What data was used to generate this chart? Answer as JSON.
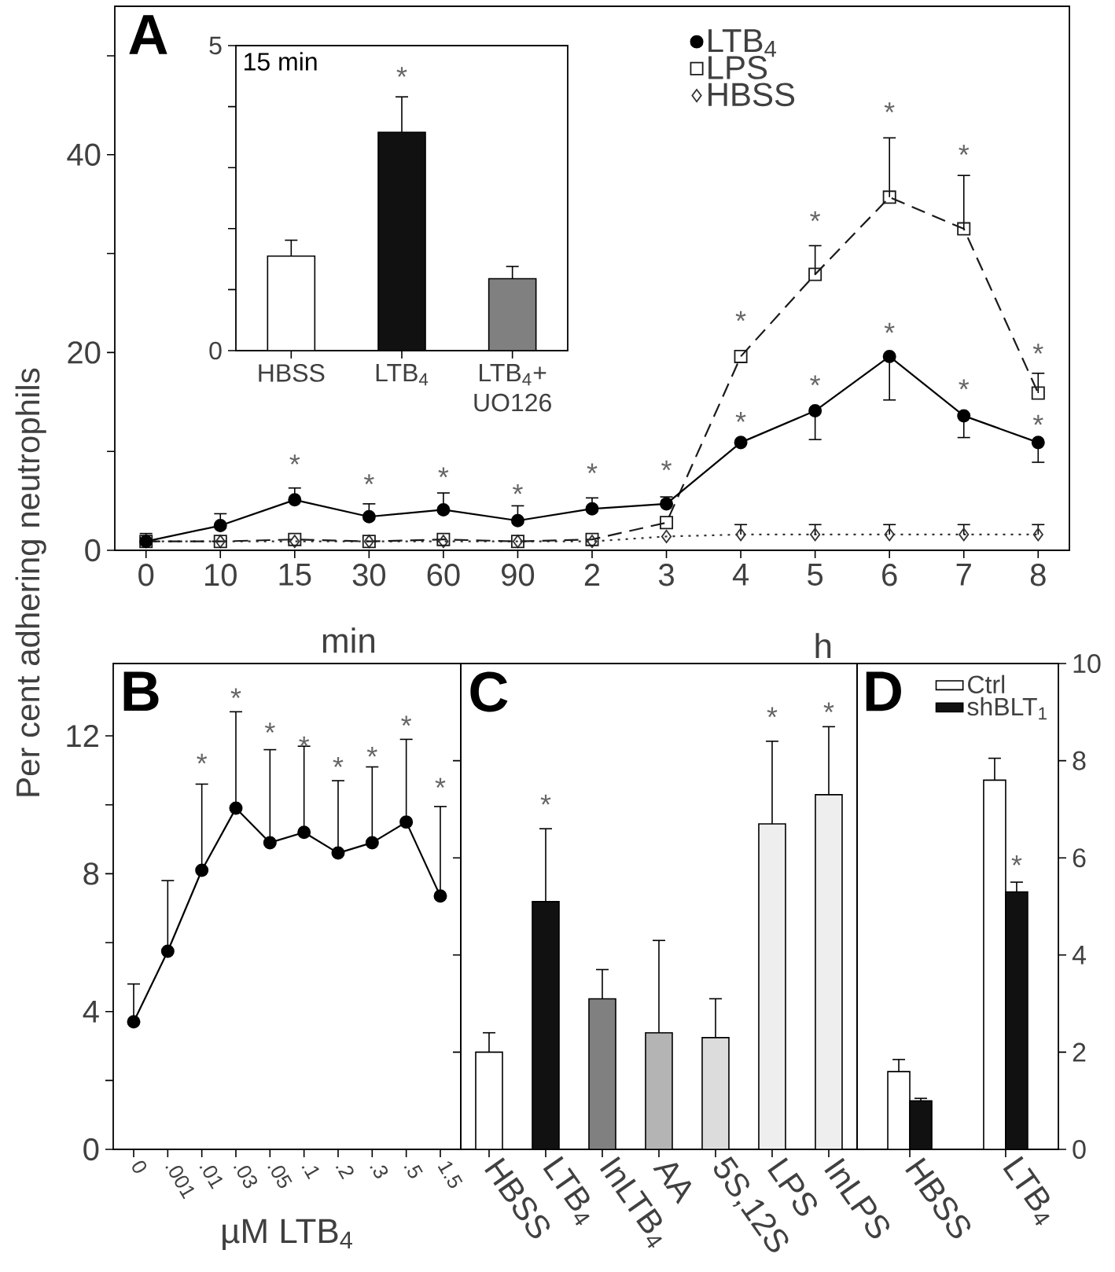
{
  "chart_data": [
    {
      "type": "line",
      "title": "A",
      "ylabel": "Per cent adhering neutrophils",
      "categories": [
        "0",
        "10",
        "15",
        "30",
        "60",
        "90",
        "2",
        "3",
        "4",
        "5",
        "6",
        "7",
        "8"
      ],
      "ylim": [
        0,
        55
      ],
      "yticks": [
        0,
        {
          "value": 10,
          "label": null
        },
        20,
        {
          "value": 30,
          "label": null
        },
        40,
        {
          "value": 50,
          "label": null
        }
      ],
      "legend": "top",
      "series": [
        {
          "name": "LTB$_{4}$",
          "color": "#000000",
          "marker": "circle",
          "line_style": "solid",
          "values": [
            0.9,
            2.5,
            5.1,
            3.4,
            4.1,
            3.0,
            4.2,
            4.7,
            10.9,
            14.1,
            19.6,
            13.6,
            10.9
          ],
          "errors": [
            [
              0.9,
              1.7
            ],
            [
              2.5,
              3.7
            ],
            [
              5.1,
              6.3
            ],
            [
              3.4,
              4.7
            ],
            [
              4.1,
              5.8
            ],
            [
              3.0,
              4.5
            ],
            [
              4.2,
              5.3
            ],
            [
              4.7,
              5.4
            ],
            null,
            [
              11.2,
              14.1
            ],
            [
              15.2,
              19.6
            ],
            [
              11.4,
              13.6
            ],
            [
              8.9,
              10.9
            ]
          ]
        },
        {
          "name": "LPS",
          "color": "#1a1a1a",
          "marker": "square",
          "line_style": "dashed",
          "values": [
            0.9,
            0.9,
            1.1,
            0.9,
            1.1,
            0.9,
            1.1,
            2.8,
            19.6,
            27.9,
            35.7,
            32.5,
            15.9
          ],
          "errors": [
            null,
            null,
            null,
            null,
            null,
            null,
            null,
            null,
            null,
            [
              27.9,
              30.8
            ],
            [
              35.7,
              41.7
            ],
            [
              32.5,
              37.9
            ],
            [
              15.9,
              17.9
            ]
          ]
        },
        {
          "name": "HBSS",
          "color": "#333333",
          "marker": "diamond",
          "line_style": "dotted",
          "values": [
            0.9,
            0.9,
            0.9,
            0.9,
            0.9,
            0.9,
            0.9,
            1.4,
            1.6,
            1.6,
            1.6,
            1.6,
            1.6
          ],
          "errors": [
            null,
            null,
            null,
            null,
            null,
            null,
            null,
            null,
            [
              1.6,
              2.6
            ],
            [
              1.6,
              2.6
            ],
            [
              1.6,
              2.6
            ],
            [
              1.6,
              2.6
            ],
            [
              1.6,
              2.6
            ]
          ]
        }
      ],
      "annotations": [
        "min",
        "h",
        "*",
        "*",
        "*",
        "*",
        "*",
        "*",
        "*",
        "*",
        "*",
        "*",
        "*",
        "*",
        "*",
        "*",
        "*",
        "*"
      ]
    },
    {
      "type": "bar",
      "title": "15 min",
      "categories": [
        "HBSS",
        "LTB$_{4}$",
        "LTB$_{4}$+ UO126"
      ],
      "values": [
        1.55,
        3.58,
        1.18
      ],
      "errors": [
        0.26,
        0.58,
        0.2
      ],
      "colors": [
        "#ffffff",
        "#111111",
        "#808080"
      ],
      "ylim": [
        0,
        5
      ],
      "yticks": [
        0,
        {
          "value": 1,
          "label": null
        },
        {
          "value": 2,
          "label": null
        },
        {
          "value": 3,
          "label": null
        },
        {
          "value": 4,
          "label": null
        },
        5
      ],
      "annotations": [
        "*"
      ]
    },
    {
      "type": "line",
      "title": "B",
      "xlabel": "µM LTB$_{4}$",
      "categories": [
        "0",
        ".001",
        ".01",
        ".03",
        ".05",
        ".1",
        ".2",
        ".3",
        ".5",
        "1.5"
      ],
      "values": [
        3.7,
        5.75,
        8.1,
        9.9,
        8.9,
        9.2,
        8.6,
        8.9,
        9.5,
        7.35
      ],
      "errors": [
        1.1,
        2.05,
        2.5,
        2.8,
        2.7,
        2.5,
        2.1,
        2.2,
        2.4,
        2.6
      ],
      "color": "#000000",
      "marker": "circle",
      "ylim": [
        0,
        14.1
      ],
      "yticks": [
        0,
        {
          "value": 2,
          "label": null
        },
        4,
        {
          "value": 6,
          "label": null
        },
        8,
        {
          "value": 10,
          "label": null
        },
        12
      ],
      "annotations": [
        "*",
        "*",
        "*",
        "*",
        "*",
        "*",
        "*",
        "*"
      ]
    },
    {
      "type": "bar",
      "title": "C",
      "categories": [
        "HBSS",
        "LTB$_{4}$",
        "InLTB$_{4}$",
        "AA",
        "5S,12S",
        "LPS",
        "InLPS"
      ],
      "values": [
        2.0,
        5.1,
        3.1,
        2.4,
        2.3,
        6.7,
        7.3
      ],
      "errors": [
        0.4,
        1.5,
        0.6,
        1.9,
        0.8,
        1.7,
        1.4
      ],
      "colors": [
        "#ffffff",
        "#111111",
        "#808080",
        "#b4b4b4",
        "#dcdcdc",
        "#eeeeee",
        "#eeeeee"
      ],
      "ylim": [
        0,
        10
      ],
      "yticks": [
        0,
        2,
        4,
        6,
        8,
        10
      ],
      "tick_labels": "x",
      "annotations": [
        "*",
        "*",
        "*"
      ]
    },
    {
      "type": "bar",
      "title": "D",
      "categories": [
        "HBSS",
        "LTB$_{4}$"
      ],
      "ylim": [
        0,
        10
      ],
      "yticks": [
        0,
        2,
        4,
        6,
        8,
        10
      ],
      "legend": "top right",
      "series": [
        {
          "name": "Ctrl",
          "color": "#ffffff",
          "values": [
            1.6,
            7.6
          ],
          "errors": [
            0.25,
            0.45
          ]
        },
        {
          "name": "shBLT$_{1}$",
          "color": "#111111",
          "values": [
            1.0,
            5.3
          ],
          "errors": [
            0.05,
            0.2
          ]
        }
      ],
      "annotations": [
        "*"
      ]
    }
  ]
}
